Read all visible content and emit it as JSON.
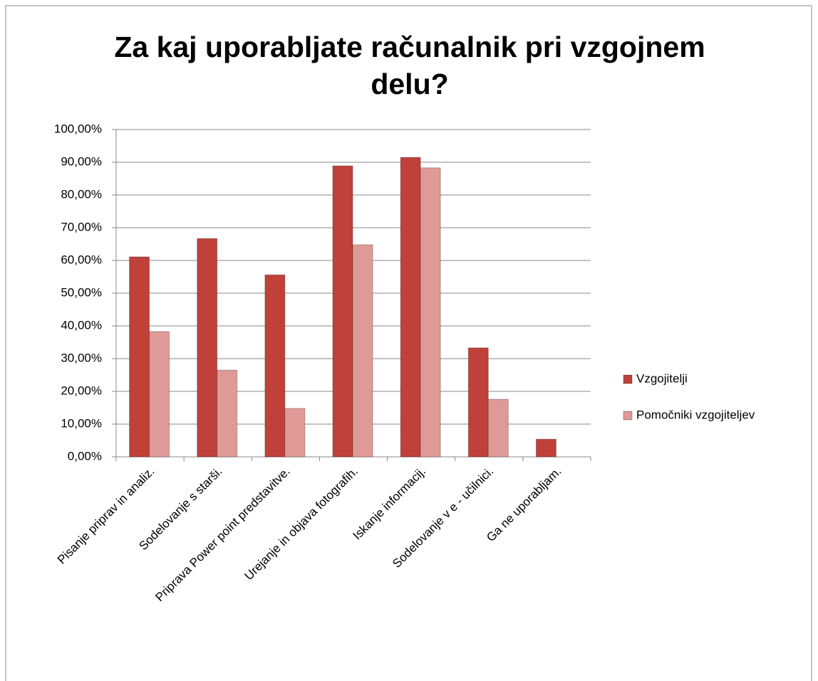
{
  "chart_data": {
    "type": "bar",
    "title": "Za kaj uporabljate računalnik pri vzgojnem delu?",
    "categories": [
      "Pisanje priprav in analiz.",
      "Sodelovanje s starši.",
      "Priprava Power point predstavitve.",
      "Urejanje in objava fotografih.",
      "Iskanje informacij.",
      "Sodelovanje v e - učilnici.",
      "Ga ne uporabljam."
    ],
    "series": [
      {
        "name": "Vzgojitelji",
        "color": "#c0403a",
        "values": [
          61.1,
          66.7,
          55.6,
          88.9,
          91.5,
          33.3,
          5.4
        ]
      },
      {
        "name": "Pomočniki vzgojiteljev",
        "color": "#df9a97",
        "values": [
          38.3,
          26.5,
          14.8,
          64.8,
          88.3,
          17.6,
          0
        ]
      }
    ],
    "ylim": [
      0,
      100
    ],
    "yticks": [
      {
        "value": 0,
        "label": "0,00%"
      },
      {
        "value": 10,
        "label": "10,00%"
      },
      {
        "value": 20,
        "label": "20,00%"
      },
      {
        "value": 30,
        "label": "30,00%"
      },
      {
        "value": 40,
        "label": "40,00%"
      },
      {
        "value": 50,
        "label": "50,00%"
      },
      {
        "value": 60,
        "label": "60,00%"
      },
      {
        "value": 70,
        "label": "70,00%"
      },
      {
        "value": 80,
        "label": "80,00%"
      },
      {
        "value": 90,
        "label": "90,00%"
      },
      {
        "value": 100,
        "label": "100,00%"
      }
    ],
    "grid": true,
    "legend": "right"
  }
}
